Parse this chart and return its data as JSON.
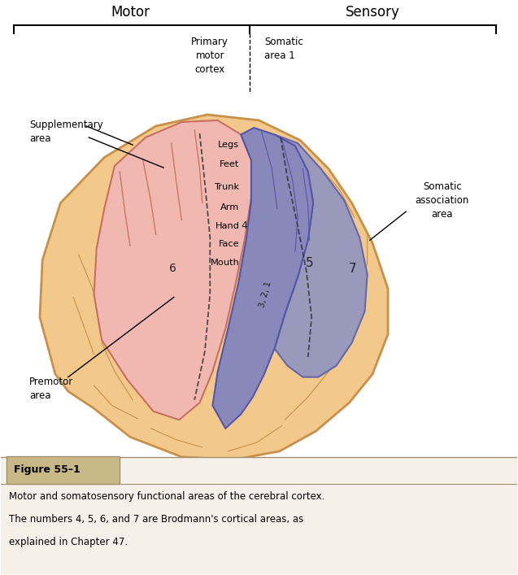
{
  "bg_color": "#FFFFFF",
  "brain_color": "#F2C98A",
  "brain_outline_color": "#C8904A",
  "motor_color": "#F0B8B0",
  "motor_outline": "#C87060",
  "somatic1_color": "#8888BB",
  "somatic1_outline": "#5555AA",
  "somatic_assoc_color": "#9999BB",
  "somatic_assoc_outline": "#6666AA",
  "header_motor": "Motor",
  "header_sensory": "Sensory",
  "label_primary": "Primary\nmotor\ncortex",
  "label_somatic1": "Somatic\narea 1",
  "label_somatic_assoc": "Somatic\nassociation\narea",
  "label_supplementary": "Supplementary\narea",
  "label_premotor": "Premotor\narea",
  "region_labels": [
    "Legs",
    "Feet",
    "Trunk",
    "Arm",
    "Hand",
    "Face",
    "Mouth"
  ],
  "brodmann_4": "4",
  "brodmann_6": "6",
  "brodmann_321": "3, 2, 1",
  "brodmann_5": "5",
  "brodmann_7": "7",
  "figure_label": "Figure 55–1",
  "caption_line1": "Motor and somatosensory functional areas of the cerebral cortex.",
  "caption_line2": "The numbers 4, 5, 6, and 7 are Brodmann's cortical areas, as",
  "caption_line3": "explained in Chapter 47.",
  "figure_bg": "#C8B888",
  "caption_color": "#000000",
  "line_color": "#222222",
  "dashed_color": "#333333",
  "sulci_color": "#C8904A",
  "motor_sulci_color": "#C87060"
}
